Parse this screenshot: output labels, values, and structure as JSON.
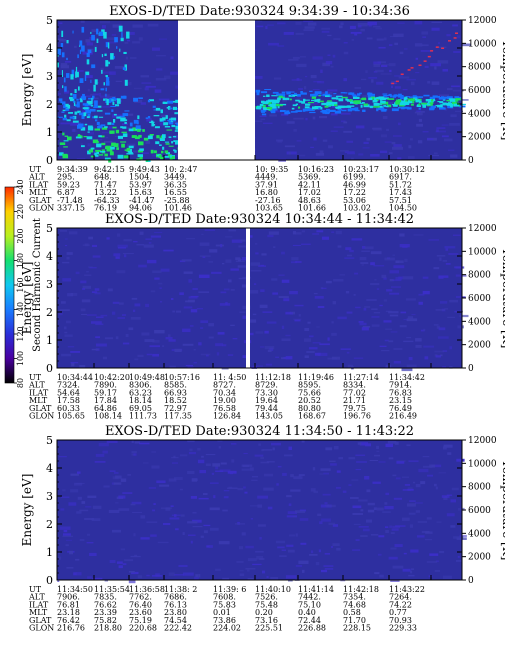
{
  "colors": {
    "background": "#2e2fa0",
    "low": "#3b2fc8",
    "cyan": "#12d6e6",
    "green": "#19e05a",
    "blue": "#1570ff",
    "gap": "#ffffff"
  },
  "chart_data": [
    {
      "type": "heatmap",
      "title": "EXOS-D/TED    Date:930324   9:34:39 - 10:34:36",
      "ylabel": "Energy [eV]",
      "ylabel_right": "Temperature [K]",
      "ylim": [
        0,
        5
      ],
      "ylim_right": [
        0,
        12000
      ],
      "yticks": [
        "0",
        "1",
        "2",
        "3",
        "4",
        "5"
      ],
      "yticks_right": [
        "0",
        "2000",
        "4000",
        "6000",
        "8000",
        "10000",
        "12000"
      ],
      "data_gap": true,
      "table_labels": [
        "UT",
        "ALT",
        "ILAT",
        "MLT",
        "GLAT",
        "GLON"
      ],
      "table_columns": [
        [
          "9:34:39",
          "295.",
          "59.23",
          "6.87",
          "-71.48",
          "337.15"
        ],
        [
          "9:42:15",
          "648.",
          "71.47",
          "13.22",
          "-64.33",
          "76.19"
        ],
        [
          "9:49:43",
          "1504.",
          "53.97",
          "15.63",
          "-41.47",
          "94.06"
        ],
        [
          "10: 2:47",
          "3449.",
          "36.35",
          "16.55",
          "-25.88",
          "101.46"
        ],
        [
          "10: 9:35",
          "4449.",
          "37.91",
          "16.80",
          "-27.16",
          "103.65"
        ],
        [
          "10:16:23",
          "5369.",
          "42.11",
          "17.02",
          "48.63",
          "101.66"
        ],
        [
          "10:23:17",
          "6199.",
          "46.99",
          "17.22",
          "53.06",
          "103.02"
        ],
        [
          "10:30:12",
          "6917.",
          "51.72",
          "17.43",
          "57.51",
          "104.50"
        ]
      ]
    },
    {
      "type": "heatmap",
      "title": "EXOS-D/TED    Date:930324  10:34:44 - 11:34:42",
      "ylabel": "Energy [eV]",
      "ylabel_right": "Temperature [K]",
      "ylim": [
        0,
        5
      ],
      "ylim_right": [
        0,
        12000
      ],
      "yticks": [
        "0",
        "1",
        "2",
        "3",
        "4",
        "5"
      ],
      "yticks_right": [
        "0",
        "2000",
        "4000",
        "6000",
        "8000",
        "10000",
        "12000"
      ],
      "data_gap": true,
      "table_labels": [
        "UT",
        "ALT",
        "ILAT",
        "MLT",
        "GLAT",
        "GLON"
      ],
      "table_columns": [
        [
          "10:34:44",
          "7324.",
          "54.64",
          "17.58",
          "60.33",
          "105.65"
        ],
        [
          "10:42:20",
          "7890.",
          "59.17",
          "17.84",
          "64.86",
          "108.14"
        ],
        [
          "10:49:48",
          "8306.",
          "63.23",
          "18.14",
          "69.05",
          "111.73"
        ],
        [
          "10:57:16",
          "8585.",
          "66.93",
          "18.52",
          "72.97",
          "117.35"
        ],
        [
          "11: 4:50",
          "8727.",
          "70.34",
          "19.00",
          "76.58",
          "126.84"
        ],
        [
          "11:12:18",
          "8729.",
          "73.30",
          "19.64",
          "79.44",
          "143.05"
        ],
        [
          "11:19:46",
          "8595.",
          "75.66",
          "20.52",
          "80.80",
          "168.67"
        ],
        [
          "11:27:14",
          "8334.",
          "77.02",
          "21.71",
          "79.75",
          "196.76"
        ],
        [
          "11:34:42",
          "7914.",
          "76.83",
          "23.15",
          "76.49",
          "216.49"
        ]
      ]
    },
    {
      "type": "heatmap",
      "title": "EXOS-D/TED    Date:930324  11:34:50 - 11:43:22",
      "ylabel": "Energy [eV]",
      "ylabel_right": "Temperature [K]",
      "ylim": [
        0,
        5
      ],
      "ylim_right": [
        0,
        12000
      ],
      "yticks": [
        "0",
        "1",
        "2",
        "3",
        "4",
        "5"
      ],
      "yticks_right": [
        "0",
        "2000",
        "4000",
        "6000",
        "8000",
        "10000",
        "12000"
      ],
      "data_gap": false,
      "table_labels": [
        "UT",
        "ALT",
        "ILAT",
        "MLT",
        "GLAT",
        "GLON"
      ],
      "table_columns": [
        [
          "11:34:50",
          "7906.",
          "76.81",
          "23.18",
          "76.42",
          "216.76"
        ],
        [
          "11:35:54",
          "7835.",
          "76.62",
          "23.39",
          "75.82",
          "218.80"
        ],
        [
          "11:36:58",
          "7762.",
          "76.40",
          "23.60",
          "75.19",
          "220.68"
        ],
        [
          "11:38: 2",
          "7686.",
          "76.13",
          "23.80",
          "74.54",
          "222.42"
        ],
        [
          "11:39: 6",
          "7608.",
          "75.83",
          "0.01",
          "73.86",
          "224.02"
        ],
        [
          "11:40:10",
          "7526.",
          "75.48",
          "0.20",
          "73.16",
          "225.51"
        ],
        [
          "11:41:14",
          "7442.",
          "75.10",
          "0.40",
          "72.44",
          "226.88"
        ],
        [
          "11:42:18",
          "7354.",
          "74.68",
          "0.58",
          "71.70",
          "228.15"
        ],
        [
          "11:43:22",
          "7264.",
          "74.22",
          "0.77",
          "70.93",
          "229.33"
        ]
      ]
    }
  ],
  "colorbar": {
    "label": "Second Harmonic Current",
    "ticks": [
      "80",
      "100",
      "120",
      "140",
      "160",
      "180",
      "200",
      "220",
      "240"
    ],
    "stops": [
      "#000000",
      "#4a00a0",
      "#2a2fd8",
      "#1a7cff",
      "#10c8f0",
      "#14e070",
      "#b8f020",
      "#ffd000",
      "#ff2a00"
    ]
  }
}
